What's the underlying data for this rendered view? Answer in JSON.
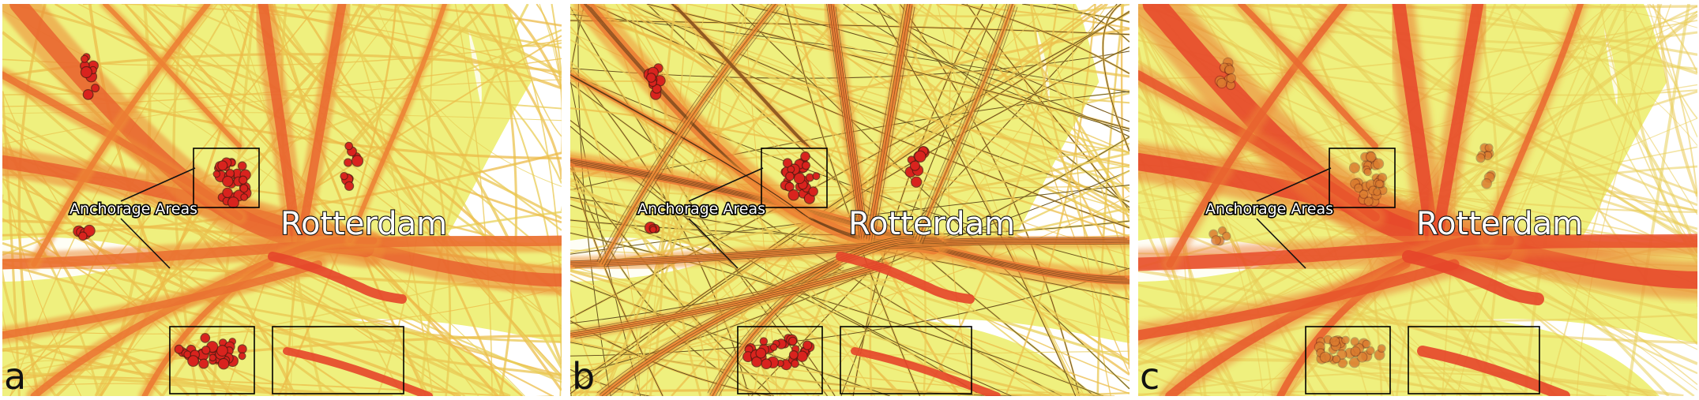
{
  "panels": [
    {
      "id": "a",
      "letter": "a",
      "style": "density",
      "annotation": "Anchorage Areas",
      "city": "Rotterdam"
    },
    {
      "id": "b",
      "letter": "b",
      "style": "detail",
      "annotation": "Anchorage Areas",
      "city": "Rotterdam"
    },
    {
      "id": "c",
      "letter": "c",
      "style": "aggregated",
      "annotation": "Anchorage Areas",
      "city": "Rotterdam"
    }
  ],
  "colors": {
    "background": "#eff07e",
    "trail_light": "#e8d15a",
    "trail_mid": "#f0a83a",
    "trail_hot": "#e6452a",
    "anchorage": "#d9231e",
    "land": "#ffffff",
    "box": "#000000"
  }
}
